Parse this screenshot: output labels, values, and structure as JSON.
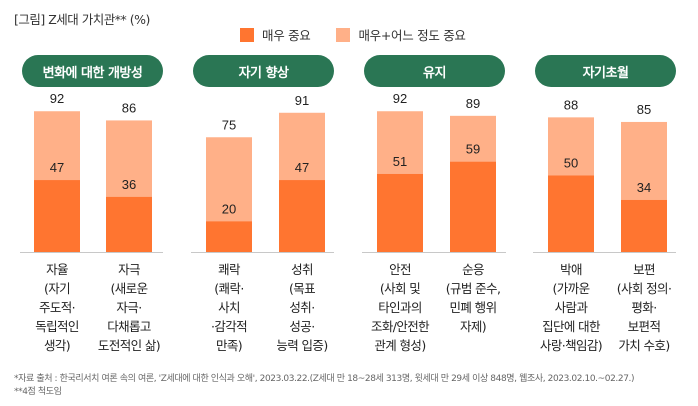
{
  "title": "[그림] Z세대 가치관** (%)",
  "legend": [
    {
      "label": "매우 중요",
      "color": "#ff7530"
    },
    {
      "label": "매우+어느 정도 중요",
      "color": "#ffb088"
    }
  ],
  "groups": [
    {
      "label": "변화에 대한 개방성"
    },
    {
      "label": "자기 향상"
    },
    {
      "label": "유지"
    },
    {
      "label": "자기초월"
    }
  ],
  "chart_data": {
    "type": "bar",
    "stacked": "overlay",
    "title": "[그림] Z세대 가치관** (%)",
    "xlabel": "",
    "ylabel": "%",
    "ylim": [
      0,
      100
    ],
    "grid": false,
    "legend_position": "top-center",
    "categories": [
      "자율\n(자기\n주도적·\n독립적인\n생각)",
      "자극\n(새로운\n자극·\n다채롭고\n도전적인 삶)",
      "쾌락\n(쾌락·\n사치\n·감각적\n만족)",
      "성취\n(목표\n성취·\n성공·\n능력 입증)",
      "안전\n(사회 및\n타인과의\n조화/안전한\n관계 형성)",
      "순응\n(규범 준수,\n민폐 행위\n자제)",
      "박애\n(가까운\n사람과\n집단에 대한\n사랑·책임감)",
      "보편\n(사회 정의·\n평화·\n보편적\n가치 수호)"
    ],
    "category_groups": [
      "변화에 대한 개방성",
      "변화에 대한 개방성",
      "자기 향상",
      "자기 향상",
      "유지",
      "유지",
      "자기초월",
      "자기초월"
    ],
    "series": [
      {
        "name": "매우+어느 정도 중요",
        "color": "#ffb088",
        "values": [
          92,
          86,
          75,
          91,
          92,
          89,
          88,
          85
        ]
      },
      {
        "name": "매우 중요",
        "color": "#ff7530",
        "values": [
          47,
          36,
          20,
          47,
          51,
          59,
          50,
          34
        ]
      }
    ]
  },
  "footnotes": [
    "*자료 출처 : 한국리서치 여론 속의 여론, 'Z세대에 대한 인식과 오해', 2023.03.22.(Z세대 만 18~28세 313명, 윗세대 만 29세 이상 848명, 웹조사, 2023.02.10.~02.27.)",
    "**4점 척도임"
  ]
}
